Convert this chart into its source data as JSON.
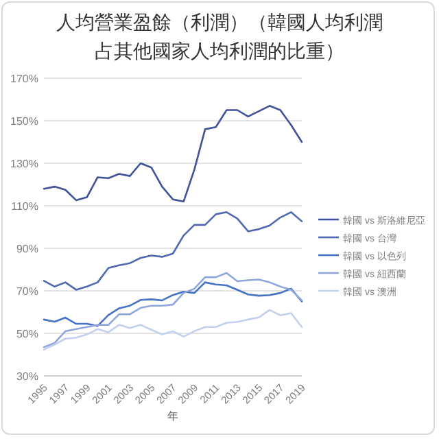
{
  "chart_data": {
    "type": "line",
    "title": "人均營業盈餘（利潤）（韓國人均利潤占其他國家人均利潤的比重）",
    "xlabel": "年",
    "categories": [
      "1995",
      null,
      "1997",
      null,
      "1999",
      null,
      "2001",
      null,
      "2003",
      null,
      "2005",
      null,
      "2007",
      null,
      "2009",
      null,
      "2011",
      null,
      "2013",
      null,
      "2015",
      null,
      "2017",
      null,
      "2019"
    ],
    "ylim": [
      30,
      170
    ],
    "yticks": [
      {
        "value": 30,
        "label": "30%"
      },
      {
        "value": 50,
        "label": "50%"
      },
      {
        "value": 70,
        "label": "70%"
      },
      {
        "value": 90,
        "label": "90%"
      },
      {
        "value": 110,
        "label": "110%"
      },
      {
        "value": 130,
        "label": "130%"
      },
      {
        "value": 150,
        "label": "150%"
      },
      {
        "value": 170,
        "label": "170%"
      }
    ],
    "grid": "y",
    "legend": "right",
    "series": [
      {
        "name": "韓國 vs 斯洛維尼亞",
        "color": "#3f529a",
        "values": [
          118,
          119,
          117.5,
          112.6,
          114,
          123.4,
          123,
          125,
          124,
          130,
          128,
          119,
          113,
          112,
          127,
          146,
          147,
          155,
          155,
          152,
          154.5,
          157,
          155,
          148,
          140
        ]
      },
      {
        "name": "韓國 vs 台灣",
        "color": "#5068b0",
        "values": [
          74.7,
          72,
          74,
          70.5,
          72,
          74,
          80.7,
          82,
          83,
          85.5,
          86.6,
          86,
          87.5,
          96,
          101,
          101,
          106,
          107,
          104,
          98,
          99,
          100.7,
          104.5,
          107,
          102.7
        ]
      },
      {
        "name": "韓國 vs 以色列",
        "color": "#4472c4",
        "values": [
          56.5,
          55.5,
          57.4,
          54.5,
          54.5,
          53.5,
          58.6,
          61.8,
          63,
          65.7,
          66,
          65.5,
          68,
          69.6,
          69,
          74,
          73,
          72.6,
          70.5,
          68.3,
          67.7,
          68,
          69,
          71,
          65
        ]
      },
      {
        "name": "韓國 vs 紐西蘭",
        "color": "#8fa6dc",
        "values": [
          43.5,
          45.5,
          51,
          52,
          53,
          54,
          54,
          59,
          59,
          62,
          63,
          63,
          63.5,
          69,
          71,
          76.4,
          76.4,
          78.4,
          74.5,
          75,
          75.3,
          74,
          72,
          70.5,
          65.5
        ]
      },
      {
        "name": "韓國 vs 澳洲",
        "color": "#c3cfee",
        "values": [
          42.4,
          44.7,
          47.5,
          48,
          49.5,
          52,
          50.5,
          54,
          52.5,
          54,
          51.7,
          49.5,
          51,
          48.5,
          51,
          53,
          53,
          55,
          55.4,
          56.5,
          57.5,
          61,
          58.5,
          59.5,
          53
        ]
      }
    ]
  }
}
